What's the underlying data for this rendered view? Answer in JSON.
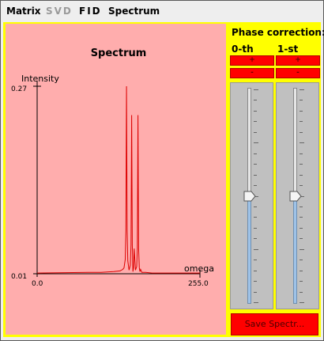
{
  "menu": {
    "items": [
      {
        "label": "Matrix",
        "enabled": true
      },
      {
        "label": "SVD",
        "enabled": false
      },
      {
        "label": "FID",
        "enabled": true
      },
      {
        "label": "Spectrum",
        "enabled": true
      }
    ]
  },
  "phase_correction": {
    "title": "Phase correction:",
    "columns": [
      {
        "label": "0-th",
        "plus": "+",
        "minus": "-",
        "slider_level": 0.5
      },
      {
        "label": "1-st",
        "plus": "+",
        "minus": "-",
        "slider_level": 0.5
      }
    ]
  },
  "save_button": "Save Spectr...",
  "colors": {
    "plot_bg": "#ffadad",
    "panel_bg": "#ffff00",
    "line": "#dd0000",
    "button": "#ff0000"
  },
  "chart_data": {
    "type": "line",
    "title": "Spectrum",
    "xlabel": "omega",
    "ylabel": "Intensity",
    "xlim": [
      0.0,
      255.0
    ],
    "ylim": [
      0.01,
      0.27
    ],
    "x_tick_labels": [
      "0.0",
      "255.0"
    ],
    "y_tick_labels": [
      "0.01",
      "0.27"
    ],
    "series": [
      {
        "x": [
          0,
          80,
          100,
          120,
          130,
          134,
          136,
          138,
          139,
          140,
          141,
          142,
          144,
          146,
          147,
          148,
          149,
          150,
          151,
          152,
          154,
          156,
          157,
          158,
          159,
          160,
          161,
          162,
          164,
          170,
          180,
          200,
          255
        ],
        "y": [
          0.011,
          0.012,
          0.012,
          0.013,
          0.014,
          0.016,
          0.018,
          0.03,
          0.07,
          0.27,
          0.07,
          0.028,
          0.015,
          0.022,
          0.05,
          0.23,
          0.05,
          0.013,
          0.018,
          0.045,
          0.015,
          0.02,
          0.045,
          0.23,
          0.045,
          0.018,
          0.013,
          0.016,
          0.012,
          0.012,
          0.011,
          0.011,
          0.011
        ]
      }
    ]
  }
}
